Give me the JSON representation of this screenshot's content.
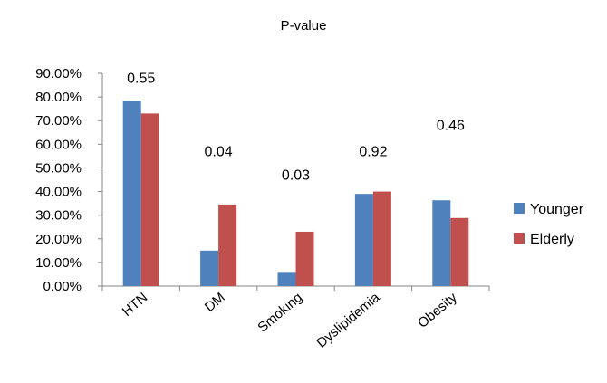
{
  "chart_data": {
    "type": "bar",
    "title": "P-value",
    "categories": [
      "HTN",
      "DM",
      "Smoking",
      "Dyslipidemia",
      "Obesity"
    ],
    "series": [
      {
        "name": "Younger",
        "color": "#4F81BD",
        "values": [
          78.5,
          15.0,
          6.0,
          39.0,
          36.3
        ]
      },
      {
        "name": "Elderly",
        "color": "#C0504D",
        "values": [
          73.0,
          34.5,
          23.0,
          40.0,
          28.8
        ]
      }
    ],
    "annotations": [
      "0.55",
      "0.04",
      "0.03",
      "0.92",
      "0.46"
    ],
    "annotation_y": [
      86,
      55,
      45,
      55,
      66
    ],
    "yticks": [
      "0.00%",
      "10.00%",
      "20.00%",
      "30.00%",
      "40.00%",
      "50.00%",
      "60.00%",
      "70.00%",
      "80.00%",
      "90.00%"
    ],
    "ylim": [
      0,
      90
    ],
    "xlabel": "",
    "ylabel": "",
    "grid": false,
    "legend": "right"
  }
}
